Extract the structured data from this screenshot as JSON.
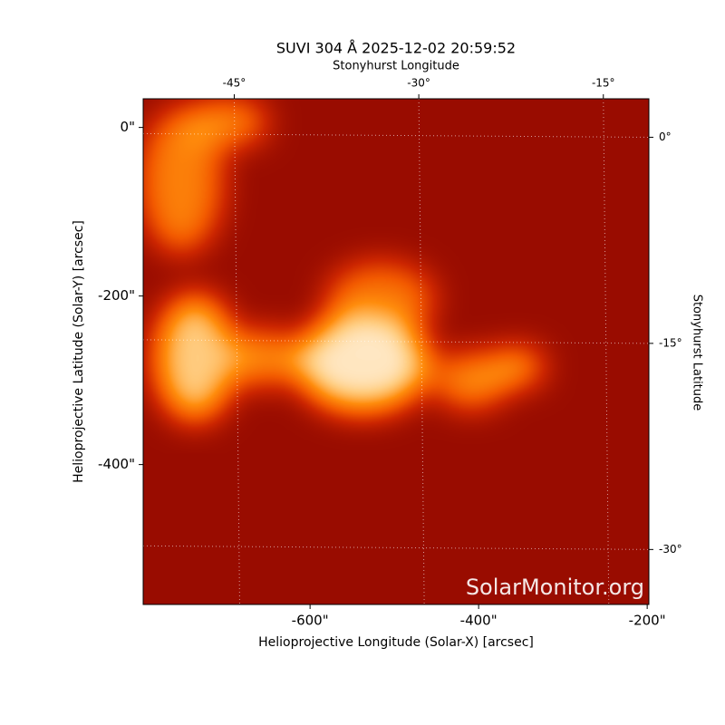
{
  "chart_data": {
    "type": "image",
    "title": "SUVI 304 Å 2025-12-02 20:59:52",
    "xlabel": "Helioprojective Longitude (Solar-X) [arcsec]",
    "ylabel": "Helioprojective Latitude (Solar-Y) [arcsec]",
    "x2label": "Stonyhurst Longitude",
    "y2label": "Stonyhurst Latitude",
    "watermark": "SolarMonitor.org",
    "xlim": [
      -798,
      -198
    ],
    "ylim": [
      -566,
      34
    ],
    "xticks": [
      {
        "value": -600,
        "label": "-600\""
      },
      {
        "value": -400,
        "label": "-400\""
      },
      {
        "value": -200,
        "label": "-200\""
      }
    ],
    "yticks": [
      {
        "value": 0,
        "label": "0\""
      },
      {
        "value": -200,
        "label": "-200\""
      },
      {
        "value": -400,
        "label": "-400\""
      }
    ],
    "x2lim": [
      -52.4,
      -11.3
    ],
    "x2ticks": [
      {
        "value": -45,
        "label": "-45°"
      },
      {
        "value": -30,
        "label": "-30°"
      },
      {
        "value": -15,
        "label": "-15°"
      }
    ],
    "y2lim": [
      -34,
      2.8
    ],
    "y2ticks": [
      {
        "value": 0,
        "label": "0°"
      },
      {
        "value": -15,
        "label": "-15°"
      },
      {
        "value": -30,
        "label": "-30°"
      }
    ],
    "grid": true
  }
}
